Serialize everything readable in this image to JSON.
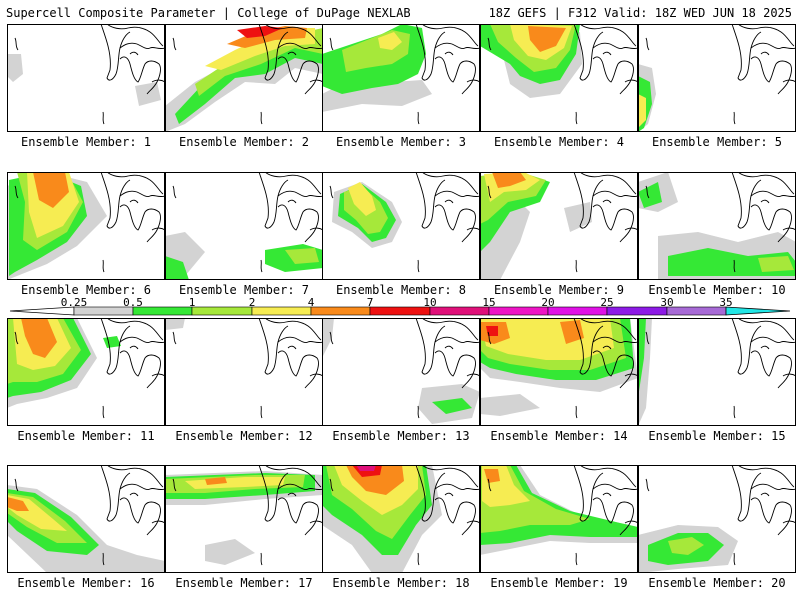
{
  "header": {
    "left": "Supercell Composite Parameter | College of DuPage NEXLAB",
    "right": "18Z GEFS | F312 Valid: 18Z WED JUN 18 2025"
  },
  "colors": {
    "c025": "#d3d3d3",
    "c05": "#35e835",
    "c1": "#a6e83a",
    "c2": "#f6ec52",
    "c4": "#f98a1b",
    "c7": "#ee1111",
    "c10": "#e0107a",
    "c15": "#ee14c6",
    "c20": "#e011e6",
    "c25": "#8d1ae6",
    "c30": "#a76ad6",
    "c35": "#22e6e6"
  },
  "legend": {
    "ticks": [
      "0.25",
      "0.5",
      "1",
      "2",
      "4",
      "7",
      "10",
      "15",
      "20",
      "25",
      "30",
      "35"
    ]
  },
  "members": [
    {
      "caption": "Ensemble Member: 1"
    },
    {
      "caption": "Ensemble Member: 2"
    },
    {
      "caption": "Ensemble Member: 3"
    },
    {
      "caption": "Ensemble Member: 4"
    },
    {
      "caption": "Ensemble Member: 5"
    },
    {
      "caption": "Ensemble Member: 6"
    },
    {
      "caption": "Ensemble Member: 7"
    },
    {
      "caption": "Ensemble Member: 8"
    },
    {
      "caption": "Ensemble Member: 9"
    },
    {
      "caption": "Ensemble Member: 10"
    },
    {
      "caption": "Ensemble Member: 11"
    },
    {
      "caption": "Ensemble Member: 12"
    },
    {
      "caption": "Ensemble Member: 13"
    },
    {
      "caption": "Ensemble Member: 14"
    },
    {
      "caption": "Ensemble Member: 15"
    },
    {
      "caption": "Ensemble Member: 16"
    },
    {
      "caption": "Ensemble Member: 17"
    },
    {
      "caption": "Ensemble Member: 18"
    },
    {
      "caption": "Ensemble Member: 19"
    },
    {
      "caption": "Ensemble Member: 20"
    }
  ]
}
